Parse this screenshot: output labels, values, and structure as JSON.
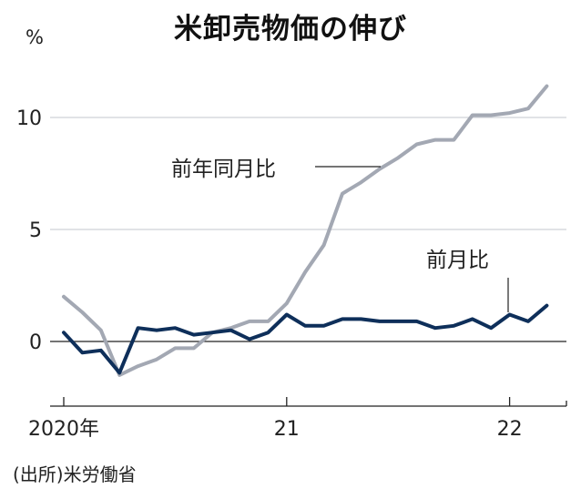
{
  "chart_data": {
    "type": "line",
    "title": "米卸売物価の伸び",
    "unit": "%",
    "source": "(出所)米労働省",
    "x_labels": [
      "2020年",
      "21",
      "22"
    ],
    "y_ticks": [
      0,
      5,
      10
    ],
    "ylim": [
      -2.8,
      13
    ],
    "x": [
      "2020-01",
      "2020-02",
      "2020-03",
      "2020-04",
      "2020-05",
      "2020-06",
      "2020-07",
      "2020-08",
      "2020-09",
      "2020-10",
      "2020-11",
      "2020-12",
      "2021-01",
      "2021-02",
      "2021-03",
      "2021-04",
      "2021-05",
      "2021-06",
      "2021-07",
      "2021-08",
      "2021-09",
      "2021-10",
      "2021-11",
      "2021-12",
      "2022-01",
      "2022-02",
      "2022-03"
    ],
    "series": [
      {
        "name": "前年同月比",
        "color": "#a3a8b3",
        "values": [
          2.0,
          1.3,
          0.5,
          -1.5,
          -1.1,
          -0.8,
          -0.3,
          -0.3,
          0.4,
          0.6,
          0.9,
          0.9,
          1.7,
          3.1,
          4.3,
          6.6,
          7.1,
          7.7,
          8.2,
          8.8,
          9.0,
          9.0,
          10.1,
          10.1,
          10.2,
          10.4,
          11.4
        ]
      },
      {
        "name": "前月比",
        "color": "#0e2f5a",
        "values": [
          0.4,
          -0.5,
          -0.4,
          -1.4,
          0.6,
          0.5,
          0.6,
          0.3,
          0.4,
          0.5,
          0.1,
          0.4,
          1.2,
          0.7,
          0.7,
          1.0,
          1.0,
          0.9,
          0.9,
          0.9,
          0.6,
          0.7,
          1.0,
          0.6,
          1.2,
          0.9,
          1.6
        ]
      }
    ]
  }
}
